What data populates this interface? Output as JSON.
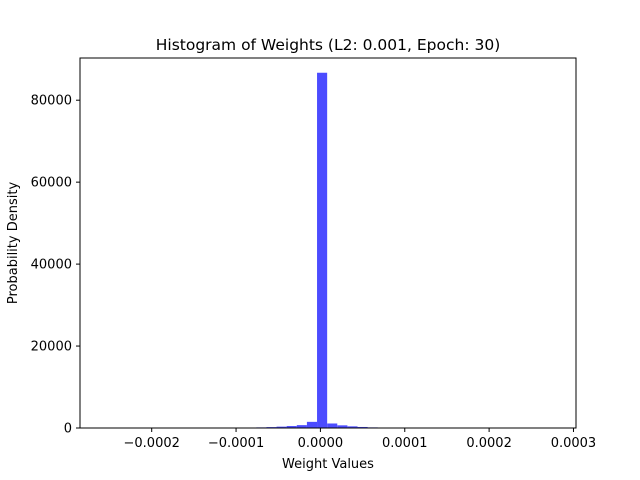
{
  "chart_data": {
    "type": "bar",
    "title": "Histogram of Weights (L2: 0.001, Epoch: 30)",
    "xlabel": "Weight Values",
    "ylabel": "Probability Density",
    "xlim": [
      -0.000285,
      0.000303
    ],
    "ylim": [
      0,
      90300
    ],
    "x_ticks": [
      -0.0002,
      -0.0001,
      0.0,
      0.0001,
      0.0002,
      0.0003
    ],
    "x_tick_labels": [
      "−0.0002",
      "−0.0001",
      "0.0000",
      "0.0001",
      "0.0002",
      "0.0003"
    ],
    "y_ticks": [
      0,
      20000,
      40000,
      60000,
      80000
    ],
    "y_tick_labels": [
      "0",
      "20000",
      "40000",
      "60000",
      "80000"
    ],
    "grid": false,
    "bar_color": "#4c4cff",
    "bins": [
      {
        "x0": -0.000112,
        "x1": -0.0001,
        "value": 40
      },
      {
        "x0": -0.0001,
        "x1": -8.8e-05,
        "value": 60
      },
      {
        "x0": -8.8e-05,
        "x1": -7.6e-05,
        "value": 90
      },
      {
        "x0": -7.6e-05,
        "x1": -6.4e-05,
        "value": 150
      },
      {
        "x0": -6.4e-05,
        "x1": -5.2e-05,
        "value": 220
      },
      {
        "x0": -5.2e-05,
        "x1": -4e-05,
        "value": 330
      },
      {
        "x0": -4e-05,
        "x1": -2.8e-05,
        "value": 480
      },
      {
        "x0": -2.8e-05,
        "x1": -1.6e-05,
        "value": 700
      },
      {
        "x0": -1.6e-05,
        "x1": -4e-06,
        "value": 1500
      },
      {
        "x0": -4e-06,
        "x1": 8e-06,
        "value": 86700
      },
      {
        "x0": 8e-06,
        "x1": 2e-05,
        "value": 1100
      },
      {
        "x0": 2e-05,
        "x1": 3.2e-05,
        "value": 650
      },
      {
        "x0": 3.2e-05,
        "x1": 4.4e-05,
        "value": 400
      },
      {
        "x0": 4.4e-05,
        "x1": 5.6e-05,
        "value": 250
      },
      {
        "x0": 5.6e-05,
        "x1": 6.8e-05,
        "value": 150
      },
      {
        "x0": 6.8e-05,
        "x1": 8e-05,
        "value": 90
      },
      {
        "x0": 8e-05,
        "x1": 9.2e-05,
        "value": 50
      }
    ]
  }
}
